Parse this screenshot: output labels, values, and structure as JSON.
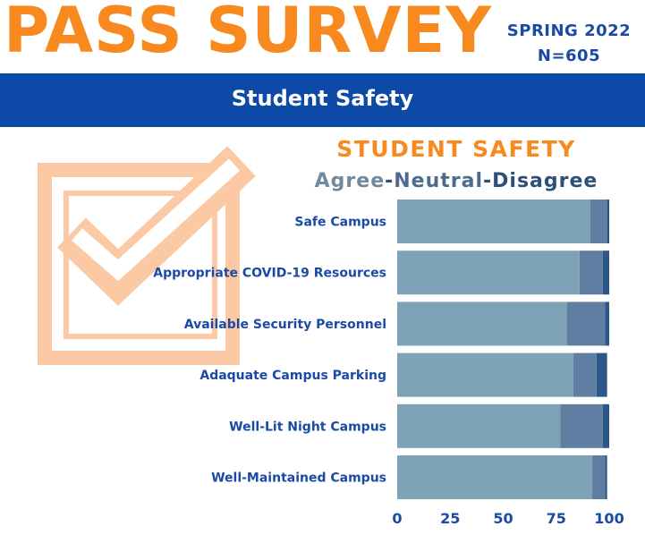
{
  "header": {
    "title": "PASS SURVEY",
    "term": "SPRING 2022",
    "sample": "N=605",
    "banner": "Student Safety"
  },
  "icons": {
    "decor": "checkbox-check-icon"
  },
  "colors": {
    "title": "#f7891f",
    "banner": "#0d4aa8",
    "label": "#1a4aa6",
    "agree": "#7ea3b7",
    "neutral": "#5f7ea1",
    "disagree": "#2d5788",
    "icon": "#fbc9a3"
  },
  "chart_data": {
    "type": "bar",
    "orientation": "horizontal",
    "stacked": true,
    "title": "STUDENT SAFETY",
    "subtitle_parts": [
      "Agree",
      "-",
      "Neutral",
      "-",
      "Disagree"
    ],
    "categories": [
      "Safe Campus",
      "Appropriate COVID-19 Resources",
      "Available Security Personnel",
      "Adaquate Campus Parking",
      "Well-Lit Night Campus",
      "Well-Maintained Campus"
    ],
    "series": [
      {
        "name": "Agree",
        "values": [
          91,
          86,
          80,
          83,
          77,
          92
        ]
      },
      {
        "name": "Neutral",
        "values": [
          8,
          11,
          18,
          11,
          20,
          6
        ]
      },
      {
        "name": "Disagree",
        "values": [
          1,
          3,
          2,
          5,
          3,
          1
        ]
      }
    ],
    "xlim": [
      0,
      100
    ],
    "xticks": [
      0,
      25,
      50,
      75,
      100
    ],
    "grid": false,
    "legend": "none"
  }
}
